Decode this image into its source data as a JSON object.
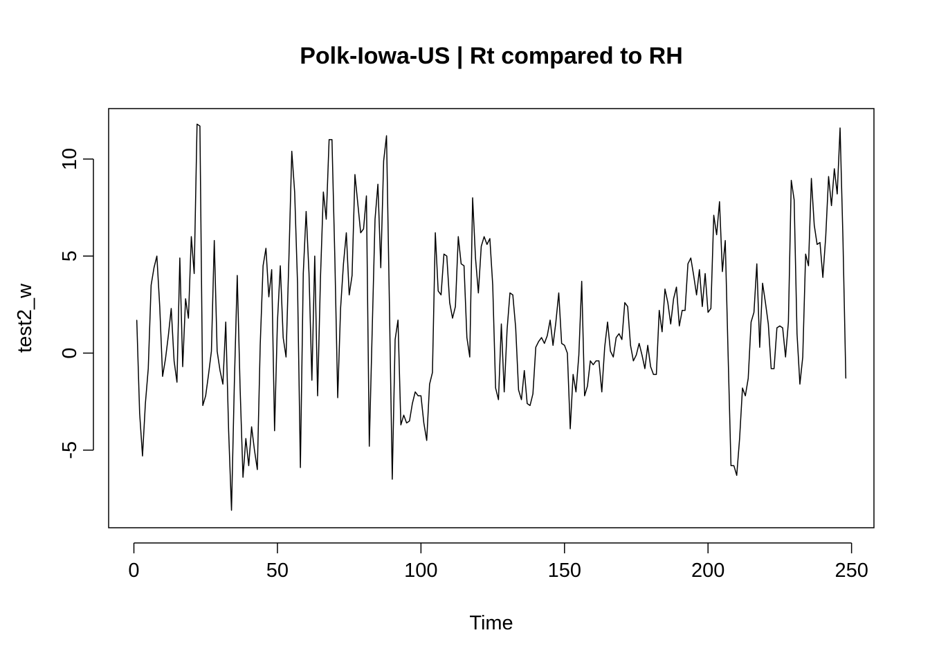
{
  "chart_data": {
    "type": "line",
    "title": "Polk-Iowa-US | Rt compared to RH",
    "xlabel": "Time",
    "ylabel": "test2_w",
    "xlim": [
      -8.8,
      257.8
    ],
    "ylim": [
      -9.0,
      12.6
    ],
    "x_ticks": [
      0,
      50,
      100,
      150,
      200,
      250
    ],
    "y_ticks": [
      -5,
      0,
      5,
      10
    ],
    "x_tick_labels": [
      "0",
      "50",
      "100",
      "150",
      "200",
      "250"
    ],
    "y_tick_labels": [
      "-5",
      "0",
      "5",
      "10"
    ],
    "grid": false,
    "legend": "none",
    "series": [
      {
        "color": "#000000",
        "x_start": 1,
        "x_step": 1,
        "values": [
          1.7,
          -3.1,
          -5.3,
          -2.6,
          -0.8,
          3.5,
          4.4,
          5.0,
          2.4,
          -1.2,
          -0.3,
          0.9,
          2.3,
          -0.4,
          -1.5,
          4.9,
          -0.7,
          2.8,
          1.8,
          6.0,
          4.1,
          11.8,
          11.7,
          -2.7,
          -2.2,
          -1.1,
          0.1,
          5.8,
          0.1,
          -0.9,
          -1.6,
          1.6,
          -4.0,
          -8.1,
          -1.5,
          4.0,
          -1.8,
          -6.4,
          -4.4,
          -5.8,
          -3.8,
          -5.0,
          -6.0,
          0.4,
          4.5,
          5.4,
          2.9,
          4.3,
          -4.0,
          1.6,
          4.5,
          0.8,
          -0.2,
          4.9,
          10.4,
          8.3,
          3.6,
          -5.9,
          4.1,
          7.3,
          4.1,
          -1.4,
          5.0,
          -2.2,
          3.9,
          8.3,
          6.9,
          11.0,
          11.0,
          4.9,
          -2.3,
          2.3,
          4.6,
          6.2,
          3.0,
          4.0,
          9.2,
          7.7,
          6.2,
          6.4,
          8.1,
          -4.8,
          1.1,
          6.9,
          8.7,
          4.4,
          9.9,
          11.2,
          2.6,
          -6.5,
          0.7,
          1.7,
          -3.7,
          -3.2,
          -3.6,
          -3.5,
          -2.6,
          -2.0,
          -2.2,
          -2.2,
          -3.6,
          -4.5,
          -1.6,
          -1.0,
          6.2,
          3.2,
          3.0,
          5.1,
          5.0,
          2.6,
          1.8,
          2.4,
          6.0,
          4.6,
          4.5,
          0.8,
          -0.2,
          8.0,
          4.9,
          3.1,
          5.5,
          6.0,
          5.6,
          5.9,
          3.5,
          -1.8,
          -2.4,
          1.5,
          -2.0,
          1.2,
          3.1,
          3.0,
          1.3,
          -1.9,
          -2.4,
          -0.9,
          -2.6,
          -2.7,
          -2.1,
          0.3,
          0.6,
          0.8,
          0.5,
          0.9,
          1.7,
          0.4,
          1.6,
          3.1,
          0.5,
          0.4,
          0.0,
          -3.9,
          -1.1,
          -2.0,
          -0.1,
          3.7,
          -2.2,
          -1.7,
          -0.4,
          -0.6,
          -0.4,
          -0.4,
          -2.0,
          0.3,
          1.6,
          0.1,
          -0.2,
          0.8,
          1.0,
          0.7,
          2.6,
          2.4,
          0.4,
          -0.4,
          -0.1,
          0.5,
          -0.1,
          -0.8,
          0.4,
          -0.7,
          -1.1,
          -1.1,
          2.2,
          1.1,
          3.3,
          2.6,
          1.5,
          2.8,
          3.4,
          1.4,
          2.2,
          2.2,
          4.6,
          4.9,
          4.0,
          3.0,
          4.3,
          2.4,
          4.1,
          2.1,
          2.3,
          7.1,
          6.1,
          7.8,
          4.2,
          5.8,
          -0.1,
          -5.8,
          -5.8,
          -6.3,
          -4.4,
          -1.8,
          -2.2,
          -1.3,
          1.6,
          2.1,
          4.6,
          0.3,
          3.6,
          2.6,
          1.5,
          -0.8,
          -0.8,
          1.3,
          1.4,
          1.3,
          -0.2,
          1.6,
          8.9,
          7.9,
          1.0,
          -1.6,
          -0.2,
          5.1,
          4.5,
          9.0,
          6.6,
          5.6,
          5.7,
          3.9,
          6.0,
          9.1,
          7.6,
          9.5,
          8.2,
          11.6,
          5.9,
          -1.3
        ]
      }
    ]
  }
}
